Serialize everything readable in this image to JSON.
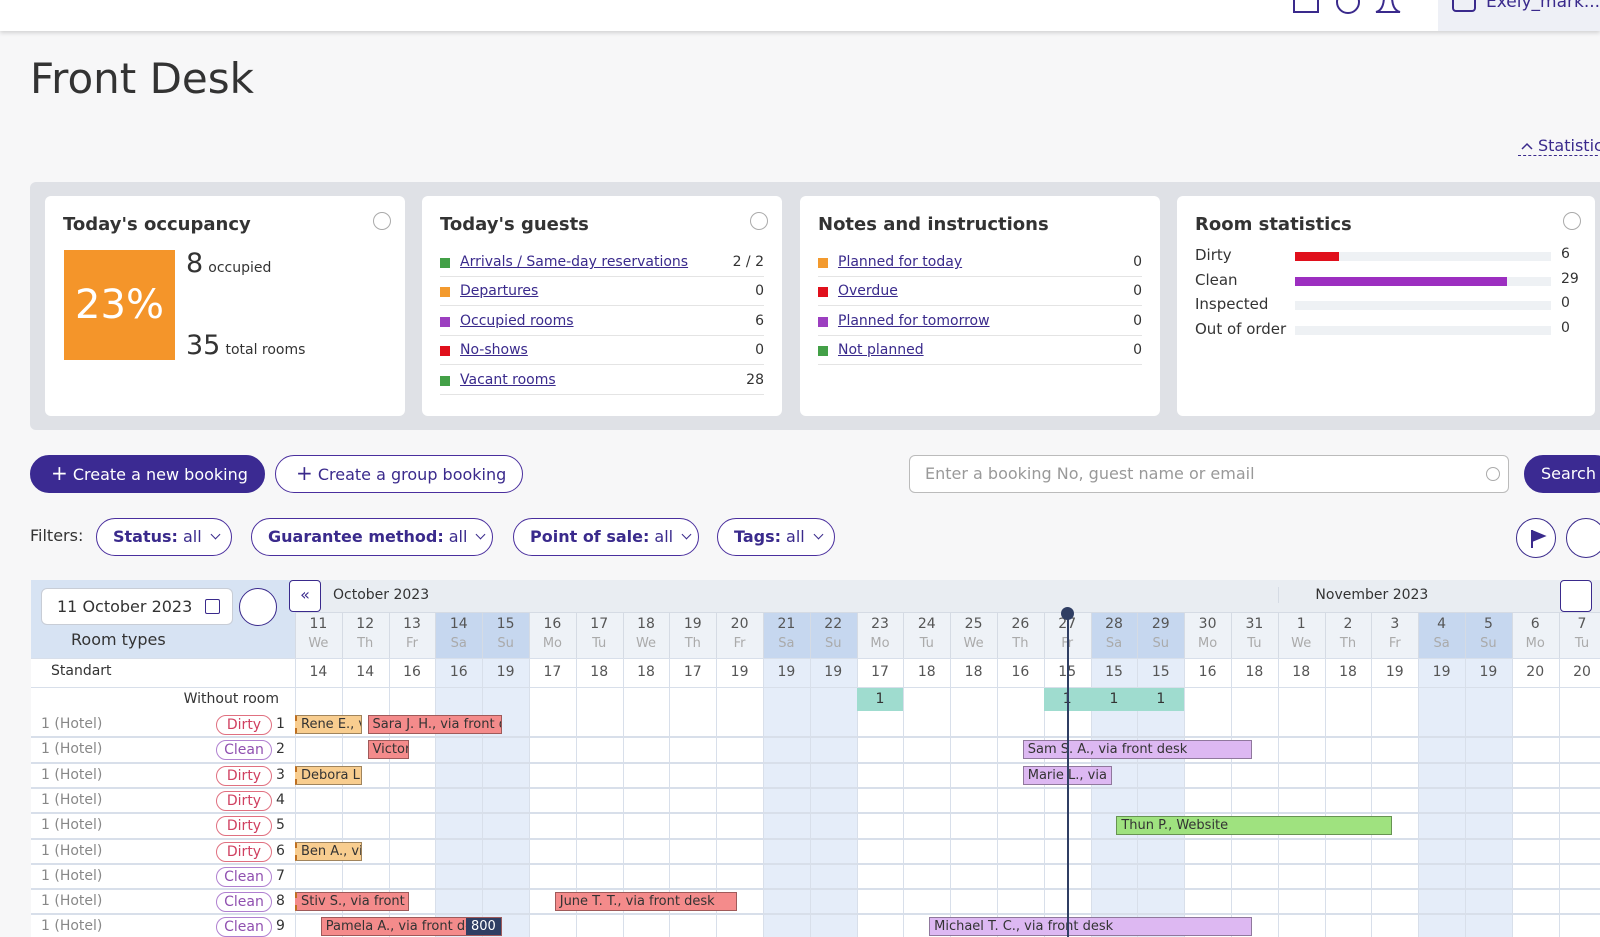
{
  "header": {
    "user": "Exely_mark..."
  },
  "title": "Front Desk",
  "statistics_toggle": "Statistic",
  "occupancy": {
    "title": "Today's occupancy",
    "percent": "23%",
    "occupied": 8,
    "occupied_label": "occupied",
    "total": 35,
    "total_label": "total rooms"
  },
  "guests": {
    "title": "Today's guests",
    "rows": [
      {
        "label": "Arrivals / Same-day reservations",
        "value": "2 / 2",
        "color": "#43a047"
      },
      {
        "label": "Departures",
        "value": 0,
        "color": "#f39a2e"
      },
      {
        "label": "Occupied rooms",
        "value": 6,
        "color": "#9c3fc0"
      },
      {
        "label": "No-shows",
        "value": 0,
        "color": "#e0101c"
      },
      {
        "label": "Vacant rooms",
        "value": 28,
        "color": "#43a047"
      }
    ]
  },
  "notes": {
    "title": "Notes and instructions",
    "rows": [
      {
        "label": "Planned for today",
        "value": 0,
        "color": "#f39a2e"
      },
      {
        "label": "Overdue",
        "value": 0,
        "color": "#e0101c"
      },
      {
        "label": "Planned for tomorrow",
        "value": 0,
        "color": "#9c3fc0"
      },
      {
        "label": "Not planned",
        "value": 0,
        "color": "#43a047"
      }
    ]
  },
  "room_statistics": {
    "title": "Room statistics",
    "rows": [
      {
        "label": "Dirty",
        "value": 6,
        "color": "#e0101c"
      },
      {
        "label": "Clean",
        "value": 29,
        "color": "#9c2fc0"
      },
      {
        "label": "Inspected",
        "value": 0,
        "color": "#43a047"
      },
      {
        "label": "Out of order",
        "value": 0,
        "color": "#888888"
      }
    ]
  },
  "actions": {
    "new_booking": "Create a new booking",
    "group_booking": "Create a group booking",
    "search_placeholder": "Enter a booking No, guest name or email",
    "search": "Search"
  },
  "filters": {
    "label": "Filters:",
    "items": [
      {
        "name": "Status:",
        "value": "all"
      },
      {
        "name": "Guarantee method:",
        "value": "all"
      },
      {
        "name": "Point of sale:",
        "value": "all"
      },
      {
        "name": "Tags:",
        "value": "all"
      }
    ]
  },
  "calendar": {
    "date": "11 October 2023",
    "room_types": "Room types",
    "months": [
      "October 2023",
      "November 2023"
    ],
    "days": [
      {
        "day": "11",
        "weekday": "We",
        "available": 14,
        "weekend": false
      },
      {
        "day": "12",
        "weekday": "Th",
        "available": 14,
        "weekend": false
      },
      {
        "day": "13",
        "weekday": "Fr",
        "available": 16,
        "weekend": false
      },
      {
        "day": "14",
        "weekday": "Sa",
        "available": 16,
        "weekend": true
      },
      {
        "day": "15",
        "weekday": "Su",
        "available": 19,
        "weekend": true
      },
      {
        "day": "16",
        "weekday": "Mo",
        "available": 17,
        "weekend": false
      },
      {
        "day": "17",
        "weekday": "Tu",
        "available": 18,
        "weekend": false
      },
      {
        "day": "18",
        "weekday": "We",
        "available": 18,
        "weekend": false
      },
      {
        "day": "19",
        "weekday": "Th",
        "available": 17,
        "weekend": false
      },
      {
        "day": "20",
        "weekday": "Fr",
        "available": 19,
        "weekend": false
      },
      {
        "day": "21",
        "weekday": "Sa",
        "available": 19,
        "weekend": true
      },
      {
        "day": "22",
        "weekday": "Su",
        "available": 19,
        "weekend": true
      },
      {
        "day": "23",
        "weekday": "Mo",
        "available": 17,
        "weekend": false
      },
      {
        "day": "24",
        "weekday": "Tu",
        "available": 18,
        "weekend": false
      },
      {
        "day": "25",
        "weekday": "We",
        "available": 18,
        "weekend": false
      },
      {
        "day": "26",
        "weekday": "Th",
        "available": 16,
        "weekend": false
      },
      {
        "day": "27",
        "weekday": "Fr",
        "available": 15,
        "weekend": false
      },
      {
        "day": "28",
        "weekday": "Sa",
        "available": 15,
        "weekend": true
      },
      {
        "day": "29",
        "weekday": "Su",
        "available": 15,
        "weekend": true
      },
      {
        "day": "30",
        "weekday": "Mo",
        "available": 16,
        "weekend": false
      },
      {
        "day": "31",
        "weekday": "Tu",
        "available": 18,
        "weekend": false
      },
      {
        "day": "1",
        "weekday": "We",
        "available": 18,
        "weekend": false
      },
      {
        "day": "2",
        "weekday": "Th",
        "available": 18,
        "weekend": false
      },
      {
        "day": "3",
        "weekday": "Fr",
        "available": 19,
        "weekend": false
      },
      {
        "day": "4",
        "weekday": "Sa",
        "available": 19,
        "weekend": true
      },
      {
        "day": "5",
        "weekday": "Su",
        "available": 19,
        "weekend": true
      },
      {
        "day": "6",
        "weekday": "Mo",
        "available": 20,
        "weekend": false
      },
      {
        "day": "7",
        "weekday": "Tu",
        "available": 20,
        "weekend": false
      }
    ],
    "group": "Standart",
    "without_room": {
      "label": "Without room",
      "values": [
        null,
        null,
        null,
        null,
        null,
        null,
        null,
        null,
        null,
        null,
        null,
        null,
        1,
        null,
        null,
        null,
        1,
        1,
        1,
        null,
        null,
        null,
        null,
        null,
        null,
        null,
        null,
        null
      ]
    },
    "rooms": [
      {
        "name": "1 (Hotel)",
        "status": "Dirty",
        "number": "1",
        "bookings": [
          {
            "label": "Rene E., vi",
            "color": "#f8cd8f"
          },
          {
            "label": "Sara J. H., via front de",
            "color": "#f48b8b"
          }
        ]
      },
      {
        "name": "1 (Hotel)",
        "status": "Clean",
        "number": "2",
        "bookings": [
          {
            "label": "Victor",
            "color": "#f48b8b"
          },
          {
            "label": "Sam S. A., via front desk",
            "color": "#ddb8f2"
          }
        ]
      },
      {
        "name": "1 (Hotel)",
        "status": "Dirty",
        "number": "3",
        "bookings": [
          {
            "label": "Debora L.,",
            "color": "#f8cd8f"
          },
          {
            "label": "Marie L., via fi",
            "color": "#ddb8f2"
          }
        ]
      },
      {
        "name": "1 (Hotel)",
        "status": "Dirty",
        "number": "4",
        "bookings": []
      },
      {
        "name": "1 (Hotel)",
        "status": "Dirty",
        "number": "5",
        "bookings": [
          {
            "label": "Thun P., Website",
            "color": "#9fe27f"
          }
        ]
      },
      {
        "name": "1 (Hotel)",
        "status": "Dirty",
        "number": "6",
        "bookings": [
          {
            "label": "Ben A., via",
            "color": "#f8cd8f"
          }
        ]
      },
      {
        "name": "1 (Hotel)",
        "status": "Clean",
        "number": "7",
        "bookings": []
      },
      {
        "name": "1 (Hotel)",
        "status": "Clean",
        "number": "8",
        "bookings": [
          {
            "label": "Stiv S., via front de",
            "color": "#f48b8b"
          },
          {
            "label": "June T. T., via front desk",
            "color": "#f48b8b"
          }
        ]
      },
      {
        "name": "1 (Hotel)",
        "status": "Clean",
        "number": "9",
        "bookings": [
          {
            "label": "Pamela A., via front des",
            "color": "#f48b8b",
            "badge": 800
          },
          {
            "label": "Michael T. C., via front desk",
            "color": "#ddb8f2"
          }
        ]
      }
    ]
  }
}
